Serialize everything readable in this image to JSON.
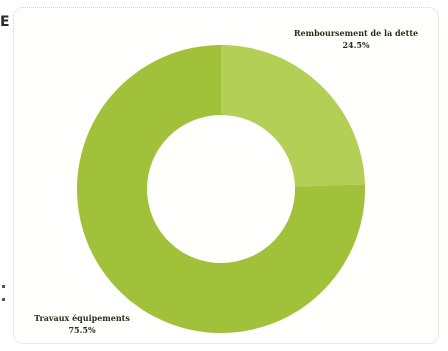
{
  "edge_glyph": "E",
  "chart_data": {
    "type": "pie",
    "variant": "donut",
    "categories": [
      "Remboursement de la dette",
      "Travaux équipements"
    ],
    "values": [
      24.5,
      75.5
    ],
    "value_labels": [
      "24.5%",
      "75.5%"
    ],
    "colors": [
      "#b3cf55",
      "#a2c13a"
    ],
    "start_angle_deg": 0,
    "direction": "clockwise",
    "title": "",
    "legend": "none"
  }
}
